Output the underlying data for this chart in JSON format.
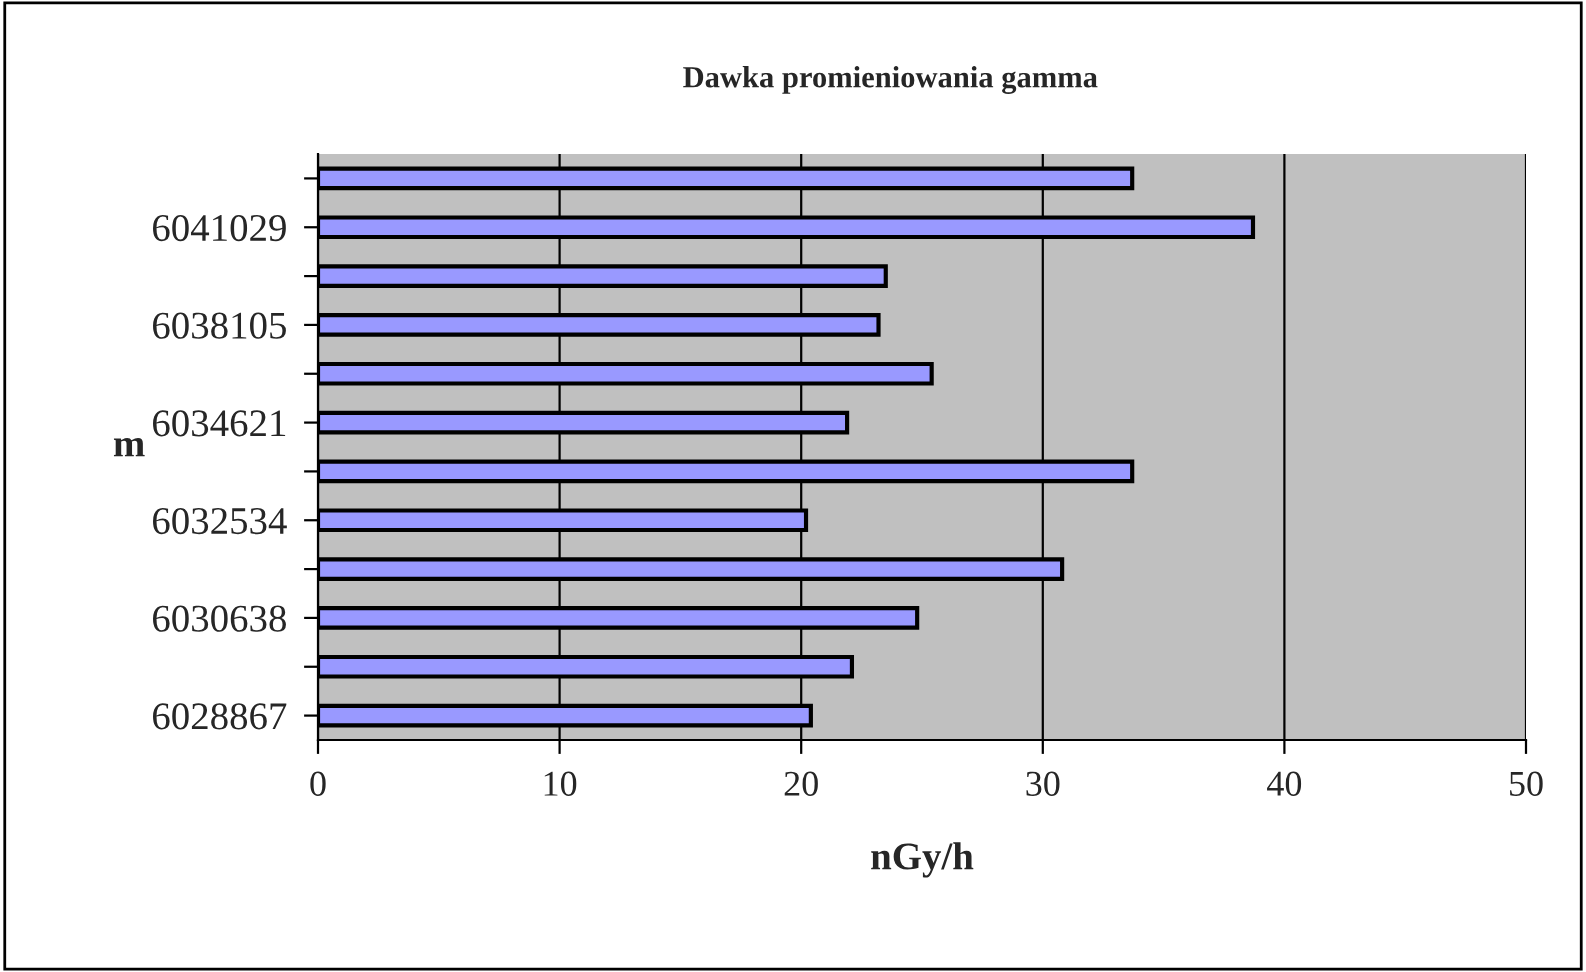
{
  "chart_data": {
    "type": "bar",
    "orientation": "horizontal",
    "title": "Dawka promieniowania gamma",
    "xlabel": "nGy/h",
    "ylabel": "m",
    "categories": [
      null,
      "6041029",
      null,
      "6038105",
      null,
      "6034621",
      null,
      "6032534",
      null,
      "6030638",
      null,
      "6028867"
    ],
    "values": [
      33.7,
      38.7,
      23.5,
      23.2,
      25.4,
      21.9,
      33.7,
      20.2,
      30.8,
      24.8,
      22.1,
      20.4
    ],
    "color": "#9999ff",
    "xlim": [
      0,
      50
    ],
    "xticks": [
      0,
      10,
      20,
      30,
      40,
      50
    ],
    "grid": "x"
  }
}
